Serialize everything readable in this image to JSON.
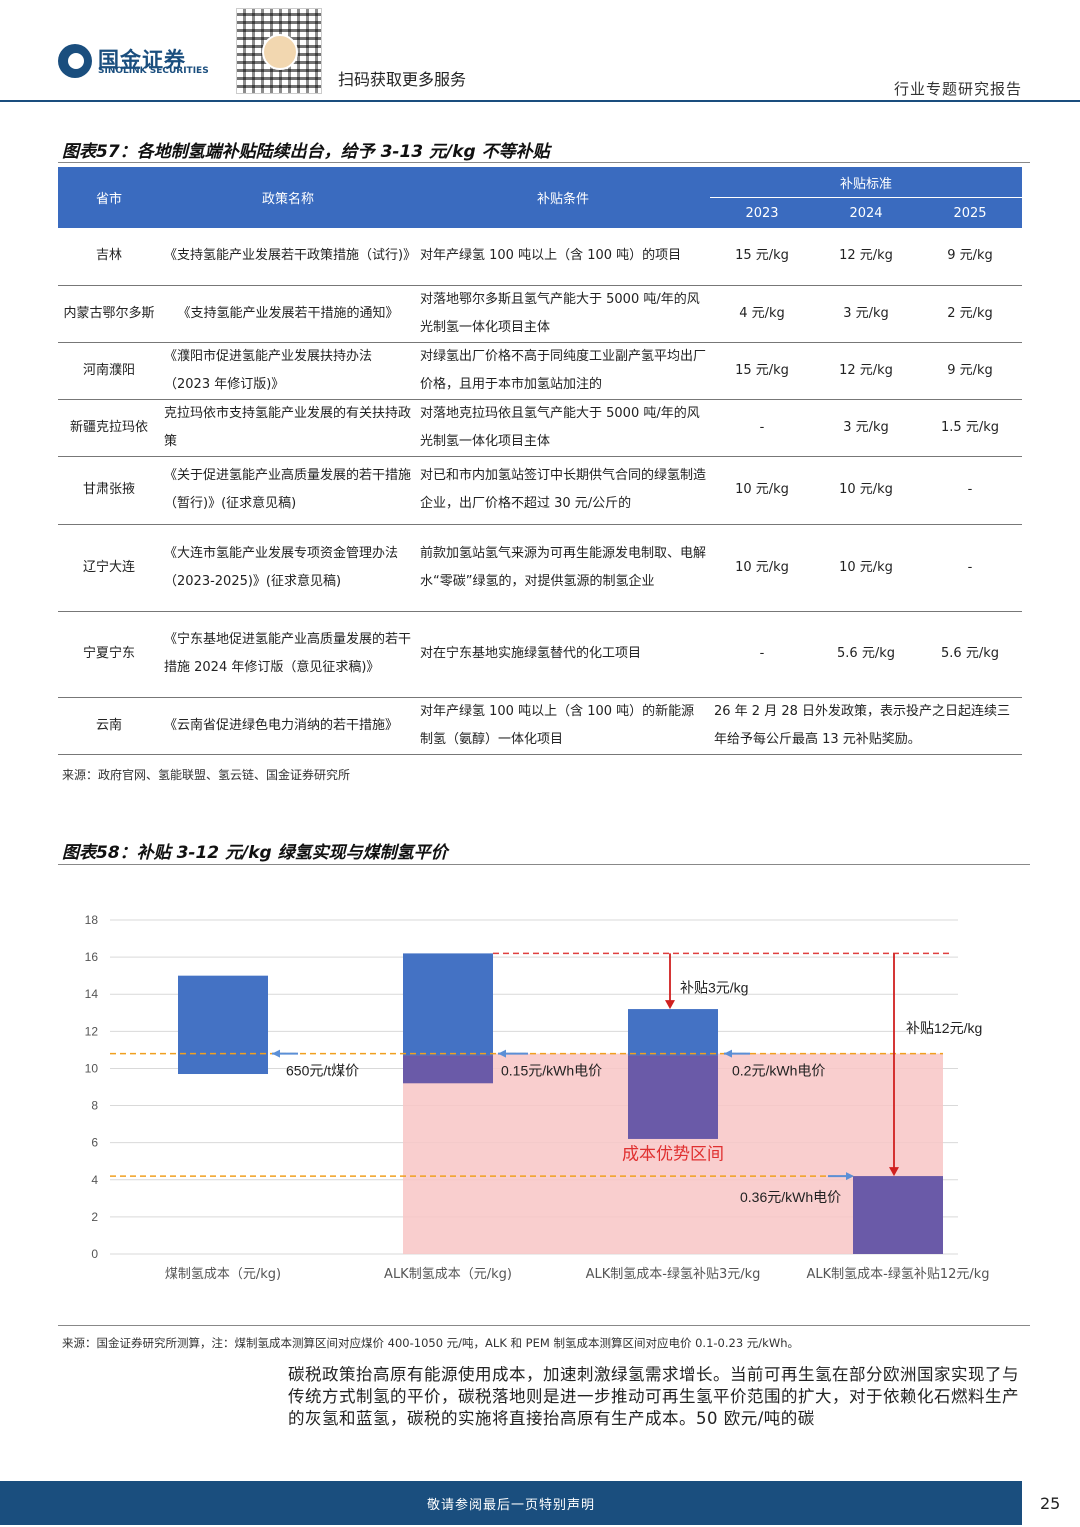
{
  "header": {
    "logo_cn": "国金证券",
    "logo_en": "SINOLINK SECURITIES",
    "scan_text": "扫码获取更多服务",
    "report_type": "行业专题研究报告"
  },
  "figure57": {
    "title": "图表57：各地制氢端补贴陆续出台，给予 3-13 元/kg 不等补贴",
    "headers": {
      "province": "省市",
      "policy": "政策名称",
      "condition": "补贴条件",
      "standard": "补贴标准",
      "y2023": "2023",
      "y2024": "2024",
      "y2025": "2025"
    },
    "rows": [
      {
        "province": "吉林",
        "policy": "《支持氢能产业发展若干政策措施（试行)》",
        "condition": "对年产绿氢 100 吨以上（含 100 吨）的项目",
        "v2023": "15 元/kg",
        "v2024": "12 元/kg",
        "v2025": "9 元/kg"
      },
      {
        "province": "内蒙古鄂尔多斯",
        "policy": "《支持氢能产业发展若干措施的通知》",
        "condition": "对落地鄂尔多斯且氢气产能大于 5000 吨/年的风光制氢一体化项目主体",
        "v2023": "4 元/kg",
        "v2024": "3 元/kg",
        "v2025": "2 元/kg"
      },
      {
        "province": "河南濮阳",
        "policy": "《濮阳市促进氢能产业发展扶持办法（2023 年修订版)》",
        "condition": "对绿氢出厂价格不高于同纯度工业副产氢平均出厂价格，且用于本市加氢站加注的",
        "v2023": "15 元/kg",
        "v2024": "12 元/kg",
        "v2025": "9 元/kg"
      },
      {
        "province": "新疆克拉玛依",
        "policy": "克拉玛依市支持氢能产业发展的有关扶持政策",
        "condition": "对落地克拉玛依且氢气产能大于 5000 吨/年的风光制氢一体化项目主体",
        "v2023": "-",
        "v2024": "3 元/kg",
        "v2025": "1.5 元/kg"
      },
      {
        "province": "甘肃张掖",
        "policy": "《关于促进氢能产业高质量发展的若干措施（暂行)》(征求意见稿)",
        "condition": "对已和市内加氢站签订中长期供气合同的绿氢制造企业，出厂价格不超过 30 元/公斤的",
        "v2023": "10 元/kg",
        "v2024": "10 元/kg",
        "v2025": "-"
      },
      {
        "province": "辽宁大连",
        "policy": "《大连市氢能产业发展专项资金管理办法（2023-2025)》(征求意见稿)",
        "condition": "前款加氢站氢气来源为可再生能源发电制取、电解水“零碳”绿氢的，对提供氢源的制氢企业",
        "v2023": "10 元/kg",
        "v2024": "10 元/kg",
        "v2025": "-"
      },
      {
        "province": "宁夏宁东",
        "policy": "《宁东基地促进氢能产业高质量发展的若干措施 2024 年修订版（意见征求稿)》",
        "condition": "对在宁东基地实施绿氢替代的化工项目",
        "v2023": "-",
        "v2024": "5.6 元/kg",
        "v2025": "5.6 元/kg"
      },
      {
        "province": "云南",
        "policy": "《云南省促进绿色电力消纳的若干措施》",
        "condition": "对年产绿氢 100 吨以上（含 100 吨）的新能源制氢（氨醇）一体化项目",
        "merged": "26 年 2 月 28 日外发政策，表示投产之日起连续三年给予每公斤最高 13 元补贴奖励。"
      }
    ],
    "source": "来源：政府官网、氢能联盟、氢云链、国金证券研究所"
  },
  "figure58": {
    "title": "图表58：补贴 3-12 元/kg 绿氢实现与煤制氢平价",
    "source": "来源：国金证券研究所测算，注：煤制氢成本测算区间对应煤价 400-1050 元/吨，ALK 和 PEM 制氢成本测算区间对应电价 0.1-0.23 元/kWh。"
  },
  "chart_data": {
    "type": "bar",
    "chart_kind": "floating-range-bar",
    "categories": [
      "煤制氢成本（元/kg)",
      "ALK制氢成本（元/kg)",
      "ALK制氢成本-绿氢补贴3元/kg",
      "ALK制氢成本-绿氢补贴12元/kg"
    ],
    "ranges": [
      {
        "low": 9.7,
        "high": 15.0,
        "split": null
      },
      {
        "low": 9.2,
        "high": 16.2,
        "split": 10.7
      },
      {
        "low": 6.2,
        "high": 13.2,
        "split": 10.7
      },
      {
        "low": 0.0,
        "high": 4.2,
        "split": null
      }
    ],
    "ylim": [
      0,
      18
    ],
    "yticks": [
      0,
      2,
      4,
      6,
      8,
      10,
      12,
      14,
      16,
      18
    ],
    "reference_lines": [
      {
        "value": 10.8,
        "style": "dashed",
        "color": "#f0a020"
      },
      {
        "value": 4.2,
        "style": "dashed",
        "color": "#f0a020"
      },
      {
        "value": 16.2,
        "style": "dashed",
        "color": "#e04040"
      }
    ],
    "advantage_zone": {
      "label": "成本优势区间",
      "low": 0,
      "high": 10.8
    },
    "annotations": {
      "coal_price": "650元/t煤价",
      "elec_015": "0.15元/kWh电价",
      "elec_02": "0.2元/kWh电价",
      "elec_036": "0.36元/kWh电价",
      "subsidy3": "补贴3元/kg",
      "subsidy12": "补贴12元/kg"
    },
    "grid": true,
    "colors": {
      "bar_top": "#4472c4",
      "bar_bottom": "#6a5aa8",
      "zone": "#f8c6c6"
    }
  },
  "paragraph": "碳税政策抬高原有能源使用成本，加速刺激绿氢需求增长。当前可再生氢在部分欧洲国家实现了与传统方式制氢的平价，碳税落地则是进一步推动可再生氢平价范围的扩大，对于依赖化石燃料生产的灰氢和蓝氢，碳税的实施将直接抬高原有生产成本。50 欧元/吨的碳",
  "footer": {
    "text": "敬请参阅最后一页特别声明",
    "page": "25"
  }
}
